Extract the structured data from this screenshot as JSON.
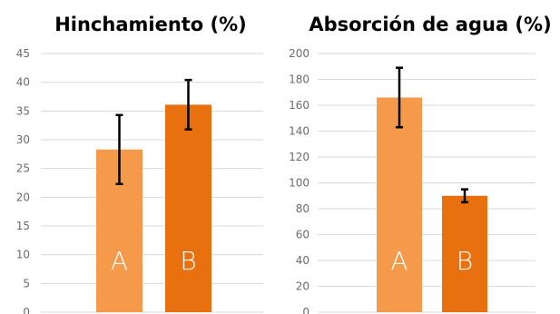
{
  "chart_data": [
    {
      "type": "bar",
      "title": "Hinchamiento (%)",
      "categories": [
        "A",
        "B"
      ],
      "values": [
        28.3,
        36.1
      ],
      "errors": [
        6.0,
        4.3
      ],
      "ylim": [
        0,
        45
      ],
      "yticks": [
        0,
        5,
        10,
        15,
        20,
        25,
        30,
        35,
        40,
        45
      ],
      "colors": [
        "#f5994a",
        "#e8700f"
      ],
      "grid": true,
      "xlabel": "",
      "ylabel": ""
    },
    {
      "type": "bar",
      "title": "Absorción de agua (%)",
      "categories": [
        "A",
        "B"
      ],
      "values": [
        166,
        90
      ],
      "errors": [
        23,
        5
      ],
      "ylim": [
        0,
        200
      ],
      "yticks": [
        0,
        20,
        40,
        60,
        80,
        100,
        120,
        140,
        160,
        180,
        200
      ],
      "colors": [
        "#f5994a",
        "#e8700f"
      ],
      "grid": true,
      "xlabel": "",
      "ylabel": ""
    }
  ]
}
